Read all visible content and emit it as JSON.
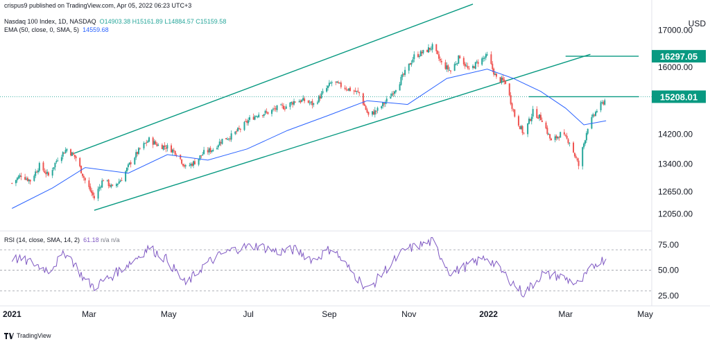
{
  "header": {
    "publisher": "crispus9 published on TradingView.com, Apr 05, 2022 06:23 UTC+3",
    "symbol_line": "Nasdaq 100 Index, 1D, NASDAQ",
    "open": "O14903.38",
    "high": "H15161.89",
    "low": "L14884.57",
    "close": "C15159.58",
    "ema_label": "EMA (50, close, 0, SMA, 5)",
    "ema_value": "14559.68",
    "rsi_label": "RSI (14, close, SMA, 14, 2)",
    "rsi_value": "61.18",
    "rsi_na1": "n/a",
    "rsi_na2": "n/a"
  },
  "footer": {
    "brand": "TradingView"
  },
  "colors": {
    "up": "#26a69a",
    "down": "#ef5350",
    "ema": "#2962ff",
    "rsi": "#7e57c2",
    "channel": "#089981"
  },
  "chart_data": [
    {
      "type": "candlestick",
      "currency": "USD",
      "y_ticks": [
        "17000.00",
        "16000.00",
        "15200.00",
        "14200.00",
        "13400.00",
        "12650.00",
        "12050.00"
      ],
      "y_tick_values": [
        17000,
        16000,
        15200,
        14200,
        13400,
        12650,
        12050
      ],
      "x_ticks": [
        "2021",
        "Mar",
        "May",
        "Jul",
        "Sep",
        "Nov",
        "2022",
        "Mar",
        "May"
      ],
      "x_tick_dates": [
        "2021-01-01",
        "2021-03-01",
        "2021-05-01",
        "2021-07-01",
        "2021-09-01",
        "2021-11-01",
        "2022-01-01",
        "2022-03-01",
        "2022-05-01"
      ],
      "x_range": [
        "2020-12-26",
        "2022-05-06"
      ],
      "y_range": [
        11650,
        17550
      ],
      "price_labels": [
        {
          "text": "16297.05",
          "value": 16297.05
        },
        {
          "text": "15208.01",
          "value": 15208.01
        }
      ],
      "horizontal_lines": [
        {
          "value": 16297.05,
          "from": "2022-03-01",
          "to": "2022-04-26"
        },
        {
          "value": 15208.01,
          "from": "2022-02-01",
          "to": "2022-04-26"
        }
      ],
      "channel_lines": [
        {
          "from": [
            "2021-02-15",
            13650
          ],
          "to": [
            "2021-12-20",
            17700
          ]
        },
        {
          "from": [
            "2021-03-05",
            12150
          ],
          "to": [
            "2022-03-20",
            16350
          ]
        }
      ],
      "series": [
        {
          "kind": "close_path",
          "points": [
            [
              "2021-01-01",
              12880
            ],
            [
              "2021-01-08",
              13100
            ],
            [
              "2021-01-15",
              12950
            ],
            [
              "2021-01-22",
              13350
            ],
            [
              "2021-01-29",
              13080
            ],
            [
              "2021-02-05",
              13550
            ],
            [
              "2021-02-12",
              13800
            ],
            [
              "2021-02-19",
              13560
            ],
            [
              "2021-02-26",
              12950
            ],
            [
              "2021-03-05",
              12480
            ],
            [
              "2021-03-12",
              13000
            ],
            [
              "2021-03-19",
              12750
            ],
            [
              "2021-03-26",
              13000
            ],
            [
              "2021-04-02",
              13450
            ],
            [
              "2021-04-09",
              13800
            ],
            [
              "2021-04-16",
              14050
            ],
            [
              "2021-04-23",
              13900
            ],
            [
              "2021-04-30",
              13850
            ],
            [
              "2021-05-07",
              13700
            ],
            [
              "2021-05-14",
              13300
            ],
            [
              "2021-05-21",
              13450
            ],
            [
              "2021-05-28",
              13700
            ],
            [
              "2021-06-04",
              13800
            ],
            [
              "2021-06-11",
              14050
            ],
            [
              "2021-06-18",
              14150
            ],
            [
              "2021-06-25",
              14350
            ],
            [
              "2021-07-02",
              14600
            ],
            [
              "2021-07-09",
              14750
            ],
            [
              "2021-07-16",
              14780
            ],
            [
              "2021-07-23",
              14900
            ],
            [
              "2021-07-30",
              14950
            ],
            [
              "2021-08-06",
              15100
            ],
            [
              "2021-08-13",
              15100
            ],
            [
              "2021-08-20",
              15000
            ],
            [
              "2021-08-27",
              15300
            ],
            [
              "2021-09-03",
              15600
            ],
            [
              "2021-09-10",
              15500
            ],
            [
              "2021-09-17",
              15400
            ],
            [
              "2021-09-24",
              15300
            ],
            [
              "2021-10-01",
              14700
            ],
            [
              "2021-10-08",
              14850
            ],
            [
              "2021-10-15",
              15100
            ],
            [
              "2021-10-22",
              15450
            ],
            [
              "2021-10-29",
              15850
            ],
            [
              "2021-11-05",
              16300
            ],
            [
              "2021-11-12",
              16400
            ],
            [
              "2021-11-19",
              16550
            ],
            [
              "2021-11-26",
              16100
            ],
            [
              "2021-12-03",
              15900
            ],
            [
              "2021-12-10",
              16300
            ],
            [
              "2021-12-17",
              15900
            ],
            [
              "2021-12-24",
              16150
            ],
            [
              "2021-12-31",
              16300
            ],
            [
              "2022-01-07",
              15700
            ],
            [
              "2022-01-14",
              15600
            ],
            [
              "2022-01-21",
              14700
            ],
            [
              "2022-01-28",
              14200
            ],
            [
              "2022-02-04",
              14800
            ],
            [
              "2022-02-11",
              14600
            ],
            [
              "2022-02-18",
              14000
            ],
            [
              "2022-02-25",
              14200
            ],
            [
              "2022-03-04",
              14000
            ],
            [
              "2022-03-11",
              13350
            ],
            [
              "2022-03-18",
              14400
            ],
            [
              "2022-03-25",
              14850
            ],
            [
              "2022-04-01",
              15150
            ]
          ]
        },
        {
          "name": "EMA (50, close, 0, SMA, 5)",
          "kind": "line",
          "points": [
            [
              "2021-01-01",
              12200
            ],
            [
              "2021-02-01",
              12750
            ],
            [
              "2021-02-26",
              13300
            ],
            [
              "2021-03-31",
              13150
            ],
            [
              "2021-04-30",
              13650
            ],
            [
              "2021-05-31",
              13500
            ],
            [
              "2021-06-30",
              13800
            ],
            [
              "2021-07-31",
              14300
            ],
            [
              "2021-08-31",
              14700
            ],
            [
              "2021-09-30",
              15100
            ],
            [
              "2021-10-31",
              15000
            ],
            [
              "2021-11-30",
              15700
            ],
            [
              "2021-12-31",
              15950
            ],
            [
              "2022-01-20",
              15700
            ],
            [
              "2022-02-10",
              15350
            ],
            [
              "2022-03-01",
              14900
            ],
            [
              "2022-03-15",
              14450
            ],
            [
              "2022-04-01",
              14560
            ]
          ]
        }
      ]
    },
    {
      "type": "line",
      "y_ticks": [
        "75.00",
        "50.00",
        "25.00"
      ],
      "y_tick_values": [
        75,
        50,
        25
      ],
      "y_range": [
        20,
        85
      ],
      "reference_lines": [
        70,
        50,
        30
      ],
      "series": [
        {
          "name": "RSI (14, close, SMA, 14, 2)",
          "points": [
            [
              "2021-01-01",
              62
            ],
            [
              "2021-01-15",
              58
            ],
            [
              "2021-01-29",
              50
            ],
            [
              "2021-02-12",
              68
            ],
            [
              "2021-02-26",
              40
            ],
            [
              "2021-03-05",
              34
            ],
            [
              "2021-03-19",
              45
            ],
            [
              "2021-04-02",
              58
            ],
            [
              "2021-04-16",
              72
            ],
            [
              "2021-04-30",
              60
            ],
            [
              "2021-05-14",
              36
            ],
            [
              "2021-05-28",
              55
            ],
            [
              "2021-06-11",
              66
            ],
            [
              "2021-06-25",
              72
            ],
            [
              "2021-07-09",
              74
            ],
            [
              "2021-07-23",
              68
            ],
            [
              "2021-08-06",
              70
            ],
            [
              "2021-08-20",
              60
            ],
            [
              "2021-09-03",
              72
            ],
            [
              "2021-09-17",
              50
            ],
            [
              "2021-10-01",
              31
            ],
            [
              "2021-10-15",
              52
            ],
            [
              "2021-10-29",
              70
            ],
            [
              "2021-11-19",
              78
            ],
            [
              "2021-12-03",
              47
            ],
            [
              "2021-12-17",
              55
            ],
            [
              "2021-12-31",
              63
            ],
            [
              "2022-01-14",
              45
            ],
            [
              "2022-01-28",
              27
            ],
            [
              "2022-02-11",
              46
            ],
            [
              "2022-02-25",
              44
            ],
            [
              "2022-03-11",
              36
            ],
            [
              "2022-03-25",
              58
            ],
            [
              "2022-04-01",
              61
            ]
          ]
        }
      ]
    }
  ]
}
